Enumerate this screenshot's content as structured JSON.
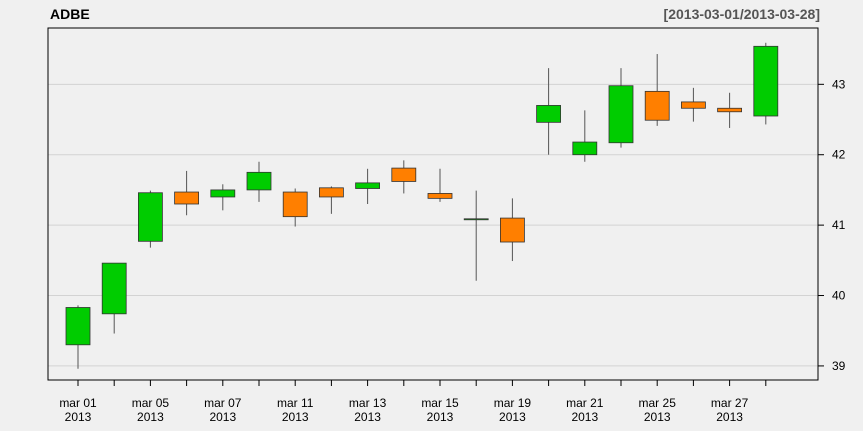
{
  "chart_data": {
    "type": "candlestick",
    "title": "ADBE",
    "date_range": "[2013-03-01/2013-03-28]",
    "up_color": "#00cc00",
    "down_color": "#ff7f00",
    "ylim": [
      38.8,
      43.8
    ],
    "y_ticks": [
      39,
      40,
      41,
      42,
      43
    ],
    "x_tick_labels": [
      {
        "month_day": "mar 01",
        "year": "2013",
        "index": 0
      },
      {
        "month_day": "mar 05",
        "year": "2013",
        "index": 2
      },
      {
        "month_day": "mar 07",
        "year": "2013",
        "index": 4
      },
      {
        "month_day": "mar 11",
        "year": "2013",
        "index": 6
      },
      {
        "month_day": "mar 13",
        "year": "2013",
        "index": 8
      },
      {
        "month_day": "mar 15",
        "year": "2013",
        "index": 10
      },
      {
        "month_day": "mar 19",
        "year": "2013",
        "index": 12
      },
      {
        "month_day": "mar 21",
        "year": "2013",
        "index": 14
      },
      {
        "month_day": "mar 25",
        "year": "2013",
        "index": 16
      },
      {
        "month_day": "mar 27",
        "year": "2013",
        "index": 18
      }
    ],
    "dates": [
      "2013-03-01",
      "2013-03-04",
      "2013-03-05",
      "2013-03-06",
      "2013-03-07",
      "2013-03-08",
      "2013-03-11",
      "2013-03-12",
      "2013-03-13",
      "2013-03-14",
      "2013-03-15",
      "2013-03-18",
      "2013-03-19",
      "2013-03-20",
      "2013-03-21",
      "2013-03-22",
      "2013-03-25",
      "2013-03-26",
      "2013-03-27",
      "2013-03-28"
    ],
    "open": [
      39.3,
      39.74,
      40.77,
      41.47,
      41.4,
      41.5,
      41.47,
      41.53,
      41.52,
      41.81,
      41.45,
      41.08,
      41.1,
      42.46,
      42.0,
      42.17,
      42.9,
      42.75,
      42.66,
      42.55
    ],
    "high": [
      39.86,
      40.46,
      41.49,
      41.77,
      41.58,
      41.9,
      41.52,
      41.55,
      41.8,
      41.92,
      41.8,
      41.49,
      41.38,
      43.23,
      42.63,
      43.23,
      43.43,
      42.95,
      42.88,
      43.59
    ],
    "low": [
      38.96,
      39.46,
      40.68,
      41.14,
      41.21,
      41.33,
      40.98,
      41.16,
      41.3,
      41.45,
      41.33,
      40.21,
      40.49,
      42.0,
      41.9,
      42.1,
      42.41,
      42.47,
      42.38,
      42.43
    ],
    "close": [
      39.83,
      40.46,
      41.46,
      41.3,
      41.5,
      41.75,
      41.12,
      41.4,
      41.6,
      41.62,
      41.38,
      41.09,
      40.76,
      42.7,
      42.18,
      42.98,
      42.49,
      42.66,
      42.61,
      43.54
    ]
  }
}
